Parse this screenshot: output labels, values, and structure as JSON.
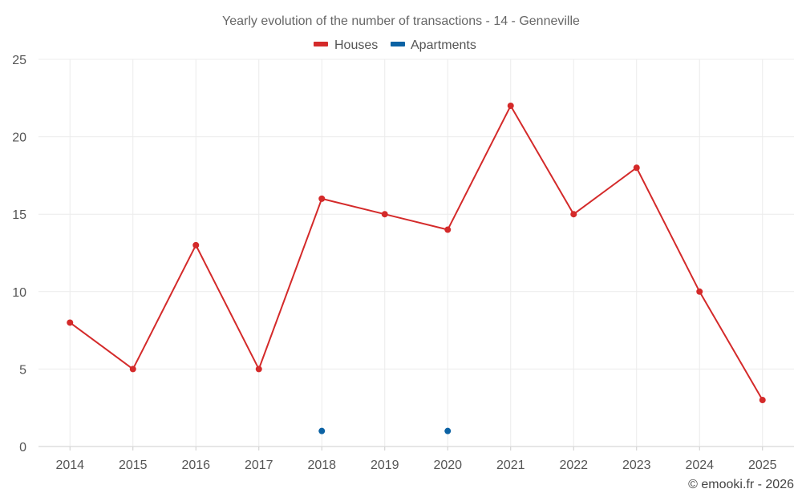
{
  "chart_data": {
    "type": "line",
    "title": "Yearly evolution of the number of transactions - 14 - Genneville",
    "xlabel": "",
    "ylabel": "",
    "categories": [
      "2014",
      "2015",
      "2016",
      "2017",
      "2018",
      "2019",
      "2020",
      "2021",
      "2022",
      "2023",
      "2024",
      "2025"
    ],
    "ylim": [
      0,
      25
    ],
    "yticks": [
      0,
      5,
      10,
      15,
      20,
      25
    ],
    "grid": true,
    "legend_position": "top-center",
    "series": [
      {
        "name": "Houses",
        "color": "#d42a2a",
        "line": true,
        "values": [
          8,
          5,
          13,
          5,
          16,
          15,
          14,
          22,
          15,
          18,
          10,
          3
        ]
      },
      {
        "name": "Apartments",
        "color": "#0b62a4",
        "line": false,
        "values": [
          null,
          null,
          null,
          null,
          1,
          null,
          1,
          null,
          null,
          null,
          null,
          null
        ]
      }
    ]
  },
  "credit": "© emooki.fr - 2026"
}
